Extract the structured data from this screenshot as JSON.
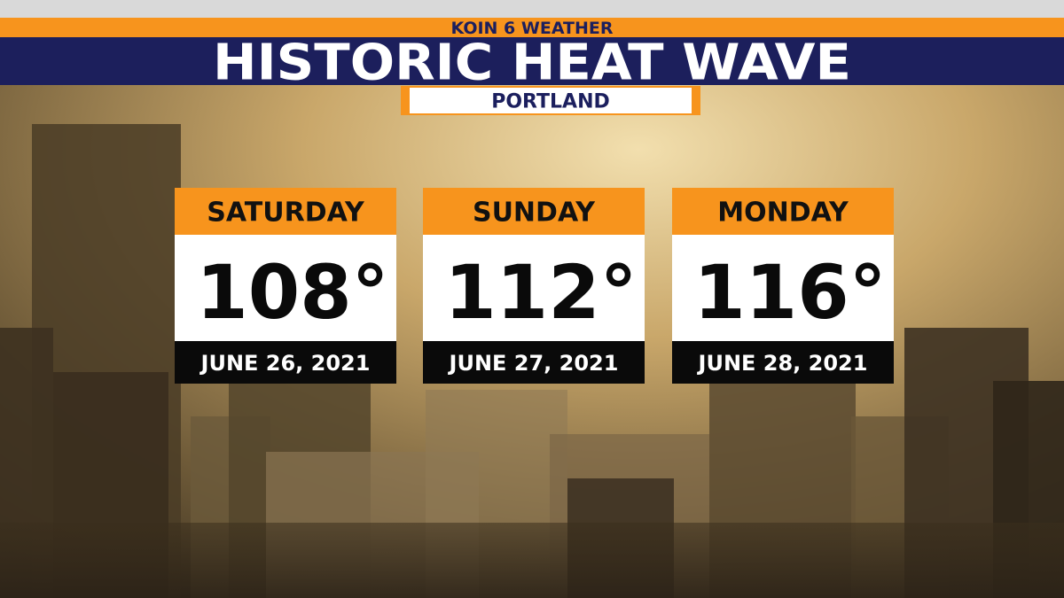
{
  "header": {
    "brand": "KOIN 6 WEATHER",
    "title": "HISTORIC HEAT WAVE",
    "location": "PORTLAND"
  },
  "days": [
    {
      "day": "SATURDAY",
      "temp": "108°",
      "date": "JUNE 26, 2021"
    },
    {
      "day": "SUNDAY",
      "temp": "112°",
      "date": "JUNE 27, 2021"
    },
    {
      "day": "MONDAY",
      "temp": "116°",
      "date": "JUNE 28, 2021"
    }
  ]
}
